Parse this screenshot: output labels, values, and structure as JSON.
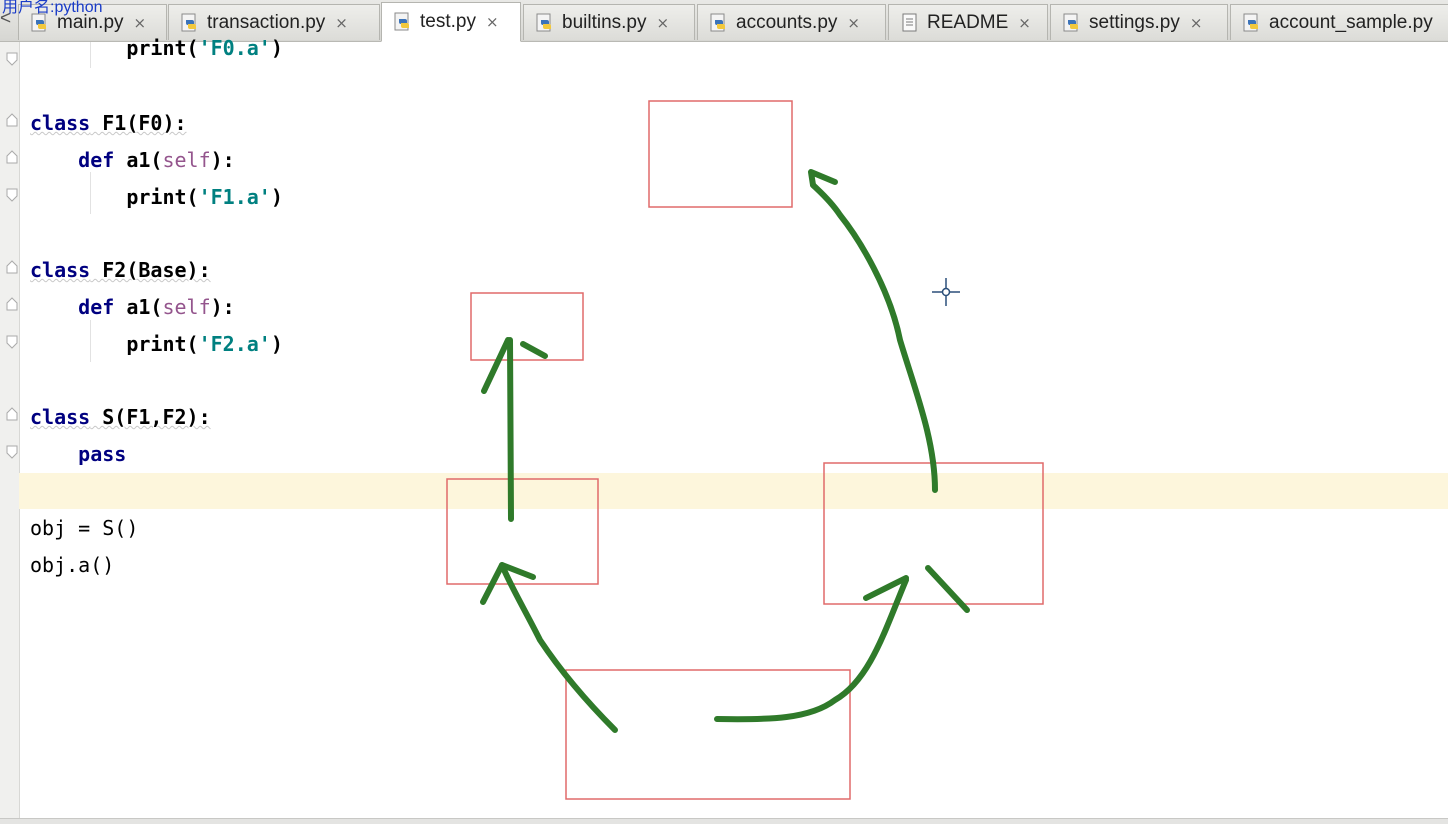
{
  "watermark": "用户名:python",
  "tab_left_stub": "<",
  "tabs": [
    {
      "label": "main.py",
      "icon": "python-file-icon",
      "active": false
    },
    {
      "label": "transaction.py",
      "icon": "python-file-icon",
      "active": false
    },
    {
      "label": "test.py",
      "icon": "python-file-icon",
      "active": true
    },
    {
      "label": "builtins.py",
      "icon": "python-file-icon",
      "active": false
    },
    {
      "label": "accounts.py",
      "icon": "python-file-icon",
      "active": false
    },
    {
      "label": "README",
      "icon": "text-file-icon",
      "active": false
    },
    {
      "label": "settings.py",
      "icon": "python-file-icon",
      "active": false
    },
    {
      "label": "account_sample.py",
      "icon": "python-file-icon",
      "active": false
    }
  ],
  "tab_close_glyph": "×",
  "code": {
    "line_prev_print": {
      "indent": "        ",
      "fn": "print",
      "open": "(",
      "str": "'F0.a'",
      "close": ")"
    },
    "f1_class": {
      "kw": "class",
      "rest": " F1(F0):"
    },
    "f1_def": {
      "indent": "    ",
      "kw": "def",
      "name": " a1(",
      "self": "self",
      "end": "):"
    },
    "f1_print": {
      "indent": "        ",
      "fn": "print",
      "open": "(",
      "str": "'F1.a'",
      "close": ")"
    },
    "f2_class": {
      "kw": "class",
      "rest": " F2(Base):"
    },
    "f2_def": {
      "indent": "    ",
      "kw": "def",
      "name": " a1(",
      "self": "self",
      "end": "):"
    },
    "f2_print": {
      "indent": "        ",
      "fn": "print",
      "open": "(",
      "str": "'F2.a'",
      "close": ")"
    },
    "s_class": {
      "kw": "class",
      "rest": " S(F1,F2):"
    },
    "s_pass": {
      "indent": "    ",
      "kw": "pass"
    },
    "obj_assign": "obj = S()",
    "obj_call": "obj.a()"
  },
  "colors": {
    "keyword": "#000080",
    "string": "#008080",
    "self": "#94558d",
    "annotation_box": "#e06a6a",
    "annotation_arrow": "#2f7a2a",
    "current_line": "#fdf6dc",
    "watermark": "#1a3cc8"
  }
}
